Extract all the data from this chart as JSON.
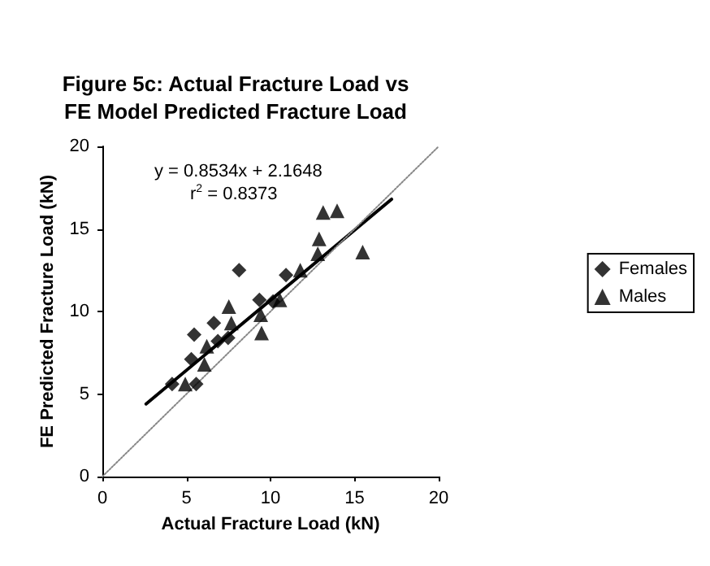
{
  "chart_data": {
    "type": "scatter",
    "title": "Figure 5c: Actual Fracture Load vs\nFE Model Predicted Fracture Load",
    "xlabel": "Actual Fracture Load (kN)",
    "ylabel": "FE Predicted Fracture Load (kN)",
    "xlim": [
      0,
      20
    ],
    "xticks": [
      0,
      5,
      10,
      15,
      20
    ],
    "ylim": [
      0,
      20
    ],
    "yticks": [
      0,
      5,
      10,
      15,
      20
    ],
    "grid": false,
    "legend": "right",
    "annotations": [
      "y = 0.8534x + 2.1648",
      "r$^{2}$ = 0.8373"
    ],
    "series": [
      {
        "name": "Females",
        "color": "#000000",
        "marker": "diamond",
        "x": [
          4.15,
          5.58,
          5.29,
          5.46,
          6.63,
          6.87,
          7.48,
          8.13,
          9.34,
          10.15,
          10.92
        ],
        "values": [
          5.6,
          5.6,
          7.1,
          8.6,
          9.3,
          8.2,
          8.4,
          12.5,
          10.7,
          10.6,
          12.2
        ]
      },
      {
        "name": "Males",
        "color": "#000000",
        "marker": "triangle",
        "x": [
          4.93,
          6.07,
          6.21,
          7.52,
          7.67,
          9.42,
          9.47,
          10.56,
          11.77,
          12.81,
          12.89,
          13.13,
          13.96,
          15.48
        ],
        "values": [
          5.6,
          6.8,
          7.9,
          10.3,
          9.3,
          9.8,
          8.7,
          10.7,
          12.5,
          13.5,
          14.4,
          16.0,
          16.1,
          13.6
        ]
      },
      {
        "type": "line",
        "color": "#000000",
        "line_style": "solid",
        "marker": "none",
        "x": [
          2.6,
          17.2
        ],
        "values": [
          4.4,
          16.8
        ]
      },
      {
        "type": "line",
        "color": "#888888",
        "line_style": "dotted",
        "marker": "none",
        "x": [
          0,
          20
        ],
        "values": [
          0,
          20
        ]
      }
    ]
  }
}
